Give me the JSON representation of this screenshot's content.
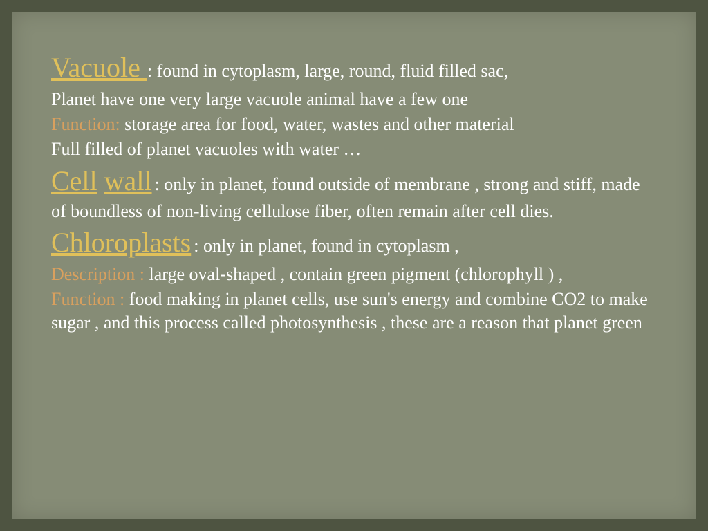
{
  "colors": {
    "bg_outer": "#4e5441",
    "bg_inner": "#868c76",
    "heading": "#e0c05a",
    "label": "#d9a05e",
    "body": "#ffffff"
  },
  "typography": {
    "heading_fontsize": 40,
    "body_fontsize": 26,
    "font_family": "Georgia, serif"
  },
  "sections": {
    "vacuole": {
      "title": "Vacuole ",
      "desc": ": found in cytoplasm, large, round, fluid filled sac,",
      "line2": "Planet have one very large vacuole animal have a few one",
      "func_label": "Function: ",
      "func_text": "storage area for food, water, wastes and other material",
      "line4": "Full filled of planet vacuoles with water …"
    },
    "cellwall": {
      "title1": "Cell",
      "title2": "wall",
      "desc": " : only in planet, found outside of membrane , strong and stiff, made of boundless  of non-living cellulose fiber, often remain after cell dies."
    },
    "chloroplasts": {
      "title": "Chloroplasts",
      "desc": " : only in planet, found in cytoplasm ,",
      "desc_label": "Description : ",
      "desc_text": "large oval-shaped , contain green pigment (chlorophyll ) ,",
      "func_label": "Function : ",
      "func_text": "food making in planet cells, use sun's energy and combine CO2 to make sugar , and this process called photosynthesis , these are a reason that planet green"
    }
  }
}
